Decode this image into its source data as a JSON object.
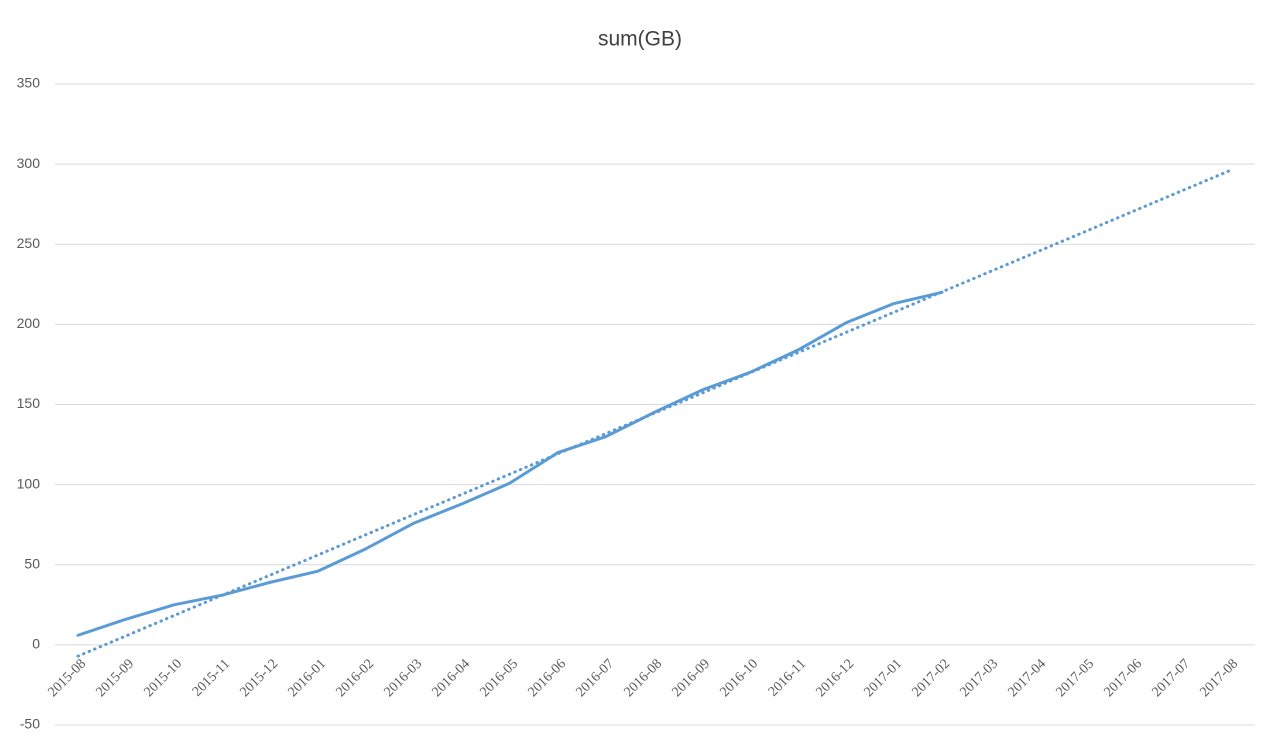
{
  "chart_data": {
    "type": "line",
    "title": "sum(GB)",
    "categories": [
      "2015-08",
      "2015-09",
      "2015-10",
      "2015-11",
      "2015-12",
      "2016-01",
      "2016-02",
      "2016-03",
      "2016-04",
      "2016-05",
      "2016-06",
      "2016-07",
      "2016-08",
      "2016-09",
      "2016-10",
      "2016-11",
      "2016-12",
      "2017-01",
      "2017-02",
      "2017-03",
      "2017-04",
      "2017-05",
      "2017-06",
      "2017-07",
      "2017-08"
    ],
    "series": [
      {
        "color": "#5b9bd5",
        "dash": "solid",
        "values": [
          6,
          16,
          25,
          31,
          39,
          46,
          60,
          76,
          88,
          101,
          120,
          130,
          145,
          159,
          170,
          184,
          201,
          213,
          220,
          null,
          null,
          null,
          null,
          null,
          null
        ]
      },
      {
        "color": "#5b9bd5",
        "dash": "dotted",
        "values": [
          -7,
          5.6,
          18.3,
          30.9,
          43.5,
          56.1,
          68.8,
          81.4,
          94,
          106.6,
          119.3,
          131.9,
          144.5,
          157.1,
          169.8,
          182.4,
          195,
          207.6,
          220.3,
          232.9,
          245.5,
          258.1,
          270.8,
          283.4,
          296
        ]
      }
    ],
    "ylim": [
      -50,
      350
    ],
    "yticks": [
      -50,
      0,
      50,
      100,
      150,
      200,
      250,
      300,
      350
    ],
    "grid": true
  }
}
